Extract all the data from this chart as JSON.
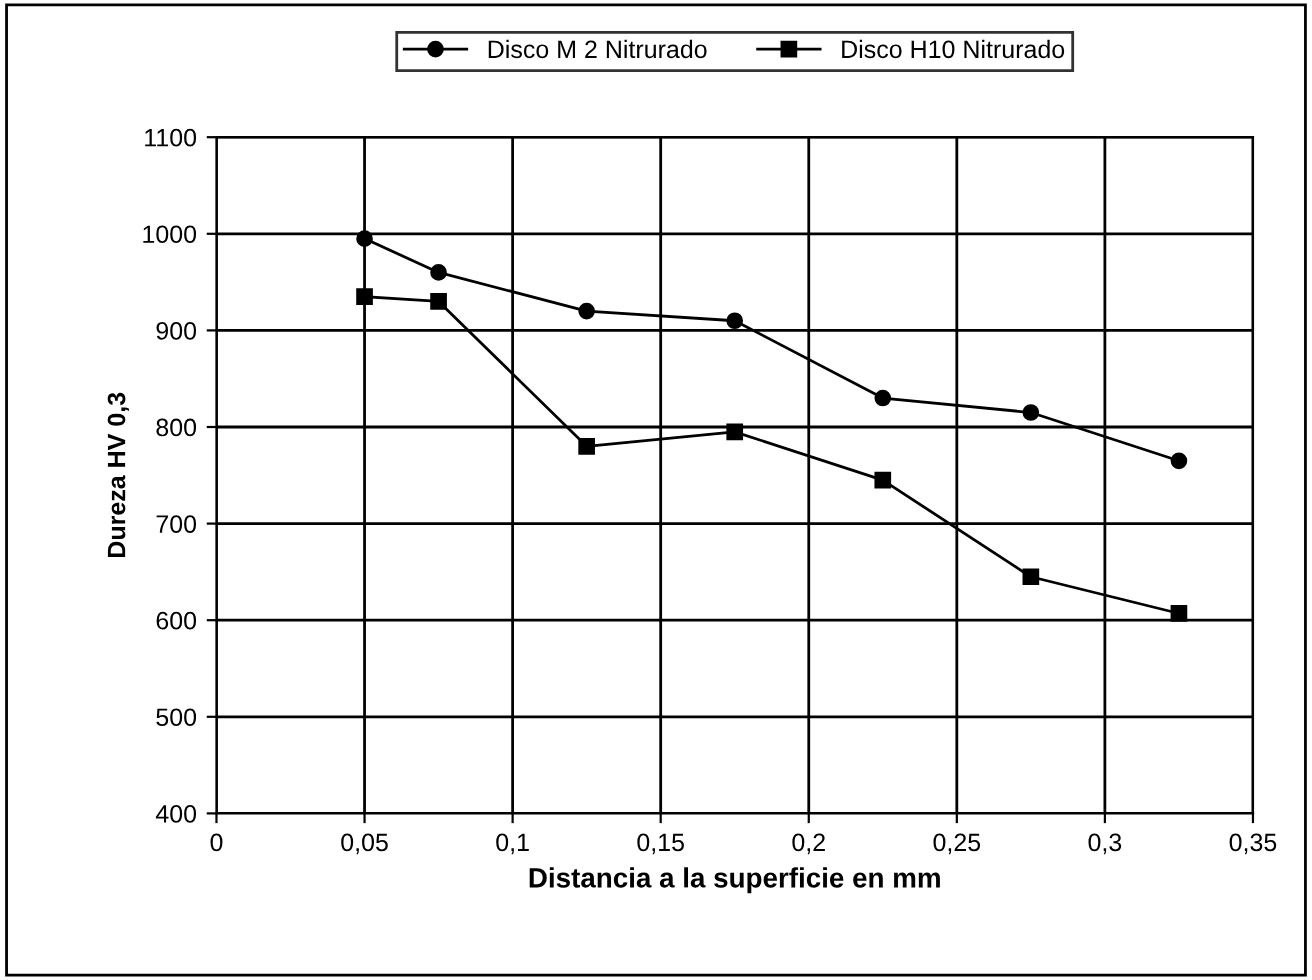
{
  "chart_data": {
    "type": "line",
    "xlabel": "Distancia a la superficie en mm",
    "ylabel": "Dureza HV 0,3",
    "x": [
      0.05,
      0.075,
      0.125,
      0.175,
      0.225,
      0.275,
      0.325
    ],
    "series": [
      {
        "name": "Disco M 2 Nitrurado",
        "color": "#000000",
        "marker": "circle",
        "values": [
          995,
          960,
          920,
          910,
          830,
          815,
          765
        ]
      },
      {
        "name": "Disco H10 Nitrurado",
        "color": "#000000",
        "marker": "square",
        "values": [
          935,
          930,
          780,
          795,
          745,
          645,
          607
        ]
      }
    ],
    "xlim": [
      0,
      0.35
    ],
    "xticks": [
      {
        "value": 0,
        "label": "0"
      },
      {
        "value": 0.05,
        "label": "0,05"
      },
      {
        "value": 0.1,
        "label": "0,1"
      },
      {
        "value": 0.15,
        "label": "0,15"
      },
      {
        "value": 0.2,
        "label": "0,2"
      },
      {
        "value": 0.25,
        "label": "0,25"
      },
      {
        "value": 0.3,
        "label": "0,3"
      },
      {
        "value": 0.35,
        "label": "0,35"
      }
    ],
    "ylim": [
      400,
      1100
    ],
    "yticks": [
      400,
      500,
      600,
      700,
      800,
      900,
      1000,
      1100
    ],
    "grid": true,
    "legend": "top",
    "line_style": "solid"
  }
}
